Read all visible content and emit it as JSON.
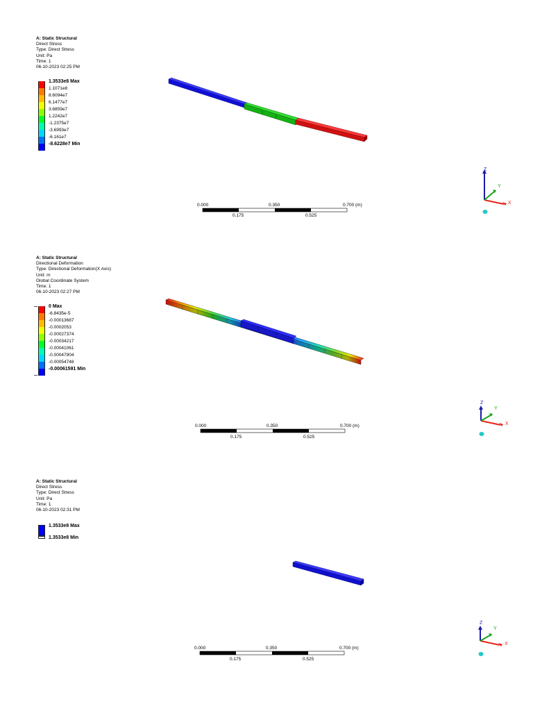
{
  "panels": [
    {
      "header": [
        "A: Static Structural",
        "Direct Stress",
        "Type: Direct Stress",
        "Unit: Pa",
        "Time: 1",
        "06-10-2023 02:25 PM"
      ],
      "legend": {
        "labels": [
          "1.3533e8 Max",
          "1.1071e8",
          "8.6094e7",
          "6.1477e7",
          "3.6859e7",
          "1.2242e7",
          "-1.2375e7",
          "-3.6993e7",
          "-6.161e7",
          "-8.6228e7 Min"
        ],
        "colors": [
          "#ff0000",
          "#ff7b00",
          "#ffbb00",
          "#f2ff00",
          "#8cff00",
          "#00ff27",
          "#00ffb0",
          "#00d8ff",
          "#0070ff",
          "#0000ff"
        ]
      }
    },
    {
      "header": [
        "A: Static Structural",
        "Directional Deformation",
        "Type: Directional Deformation(X Axis)",
        "Unit: m",
        "Global Coordinate System",
        "Time: 1",
        "06-10-2023 02:27 PM"
      ],
      "legend": {
        "labels": [
          "0 Max",
          "-6.8435e-5",
          "-0.00013687",
          "-0.0002053",
          "-0.00027374",
          "-0.00034217",
          "-0.00041061",
          "-0.00047904",
          "-0.00054748",
          "-0.00061591 Min"
        ],
        "colors": [
          "#ff0000",
          "#ff7b00",
          "#ffbb00",
          "#f2ff00",
          "#8cff00",
          "#00ff27",
          "#00ffb0",
          "#00d8ff",
          "#0070ff",
          "#0000ff"
        ]
      }
    },
    {
      "header": [
        "A: Static Structural",
        "Direct Stress",
        "Type: Direct Stress",
        "Unit: Pa",
        "Time: 1",
        "06-10-2023 02:31 PM"
      ],
      "legend": {
        "labels": [
          "1.3533e8 Max",
          "1.3533e8 Min"
        ],
        "colors": [
          "#0000ff"
        ]
      }
    }
  ],
  "scale_bar": {
    "top_labels": [
      "0.000",
      "0.350",
      "0.700"
    ],
    "unit": "(m)",
    "bottom_labels": [
      "0.175",
      "0.525"
    ]
  },
  "triad": {
    "x": "X",
    "y": "Y",
    "z": "Z",
    "x_color": "#e8231a",
    "y_color": "#1aa31a",
    "z_color": "#1a1aa8",
    "iso_color": "#20c8c8"
  }
}
